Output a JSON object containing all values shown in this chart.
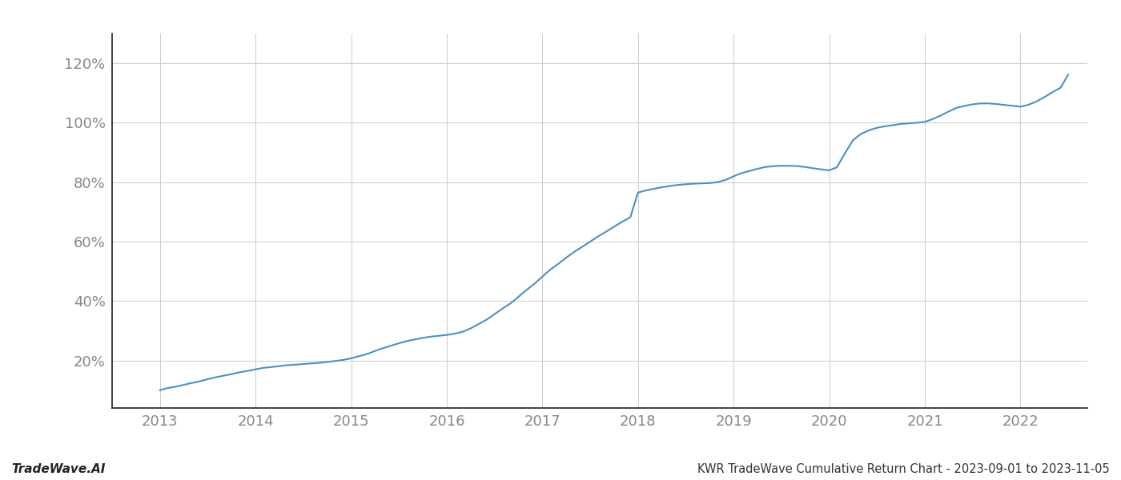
{
  "title": "KWR TradeWave Cumulative Return Chart - 2023-09-01 to 2023-11-05",
  "watermark": "TradeWave.AI",
  "line_color": "#4a90c4",
  "line_width": 1.5,
  "background_color": "#ffffff",
  "grid_color": "#cccccc",
  "x_years": [
    2013,
    2014,
    2015,
    2016,
    2017,
    2018,
    2019,
    2020,
    2021,
    2022
  ],
  "y_ticks": [
    0.2,
    0.4,
    0.6,
    0.8,
    1.0,
    1.2
  ],
  "y_tick_labels": [
    "20%",
    "40%",
    "60%",
    "80%",
    "100%",
    "120%"
  ],
  "ylim": [
    0.04,
    1.3
  ],
  "data_x": [
    2013.0,
    2013.08,
    2013.17,
    2013.25,
    2013.33,
    2013.42,
    2013.5,
    2013.58,
    2013.67,
    2013.75,
    2013.83,
    2013.92,
    2014.0,
    2014.08,
    2014.17,
    2014.25,
    2014.33,
    2014.42,
    2014.5,
    2014.58,
    2014.67,
    2014.75,
    2014.83,
    2014.92,
    2015.0,
    2015.08,
    2015.17,
    2015.25,
    2015.33,
    2015.42,
    2015.5,
    2015.58,
    2015.67,
    2015.75,
    2015.83,
    2015.92,
    2016.0,
    2016.08,
    2016.17,
    2016.25,
    2016.33,
    2016.42,
    2016.5,
    2016.58,
    2016.67,
    2016.75,
    2016.83,
    2016.92,
    2017.0,
    2017.08,
    2017.17,
    2017.25,
    2017.33,
    2017.42,
    2017.5,
    2017.58,
    2017.67,
    2017.75,
    2017.83,
    2017.92,
    2018.0,
    2018.08,
    2018.17,
    2018.25,
    2018.33,
    2018.42,
    2018.5,
    2018.58,
    2018.67,
    2018.75,
    2018.83,
    2018.92,
    2019.0,
    2019.08,
    2019.17,
    2019.25,
    2019.33,
    2019.42,
    2019.5,
    2019.58,
    2019.67,
    2019.75,
    2019.83,
    2019.92,
    2020.0,
    2020.08,
    2020.17,
    2020.25,
    2020.33,
    2020.42,
    2020.5,
    2020.58,
    2020.67,
    2020.75,
    2020.83,
    2020.92,
    2021.0,
    2021.08,
    2021.17,
    2021.25,
    2021.33,
    2021.42,
    2021.5,
    2021.58,
    2021.67,
    2021.75,
    2021.83,
    2021.92,
    2022.0,
    2022.08,
    2022.17,
    2022.25,
    2022.33,
    2022.42,
    2022.5
  ],
  "data_y": [
    0.1,
    0.107,
    0.112,
    0.118,
    0.124,
    0.13,
    0.137,
    0.143,
    0.149,
    0.154,
    0.16,
    0.165,
    0.17,
    0.175,
    0.178,
    0.181,
    0.184,
    0.186,
    0.188,
    0.19,
    0.192,
    0.195,
    0.198,
    0.202,
    0.207,
    0.214,
    0.222,
    0.232,
    0.241,
    0.25,
    0.258,
    0.265,
    0.271,
    0.276,
    0.28,
    0.283,
    0.286,
    0.29,
    0.297,
    0.308,
    0.322,
    0.338,
    0.356,
    0.374,
    0.393,
    0.414,
    0.436,
    0.459,
    0.482,
    0.505,
    0.526,
    0.546,
    0.565,
    0.583,
    0.6,
    0.617,
    0.634,
    0.65,
    0.666,
    0.682,
    0.765,
    0.772,
    0.778,
    0.783,
    0.787,
    0.791,
    0.793,
    0.795,
    0.796,
    0.797,
    0.8,
    0.808,
    0.82,
    0.83,
    0.838,
    0.845,
    0.851,
    0.854,
    0.855,
    0.855,
    0.854,
    0.851,
    0.847,
    0.843,
    0.84,
    0.85,
    0.9,
    0.942,
    0.962,
    0.975,
    0.983,
    0.988,
    0.992,
    0.996,
    0.998,
    1.0,
    1.003,
    1.012,
    1.025,
    1.038,
    1.05,
    1.057,
    1.062,
    1.065,
    1.065,
    1.063,
    1.06,
    1.057,
    1.054,
    1.06,
    1.072,
    1.086,
    1.102,
    1.118,
    1.162
  ],
  "xlim": [
    2012.5,
    2022.7
  ],
  "title_fontsize": 10.5,
  "watermark_fontsize": 11,
  "tick_color": "#888888",
  "spine_color": "#222222"
}
